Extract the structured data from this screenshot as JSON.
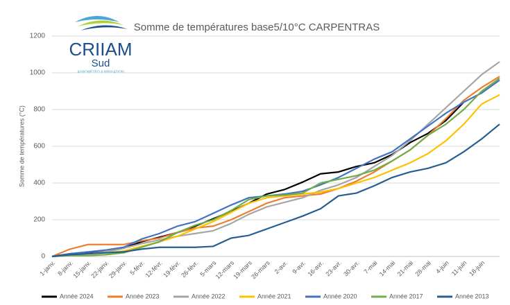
{
  "logo": {
    "name": "CRIIAM",
    "region": "Sud",
    "tagline": "AGROMÉTÉO & IRRIGATION"
  },
  "chart_data": {
    "type": "line",
    "title": "Somme de températures base5/10°C CARPENTRAS",
    "y_label": "Somme de températures (°C)",
    "categories": [
      "1-janv.",
      "8-janv.",
      "15-janv.",
      "22-janv.",
      "29-janv.",
      "5-févr.",
      "12-févr.",
      "19-févr.",
      "26-févr.",
      "5-mars",
      "12-mars",
      "19-mars",
      "26-mars",
      "2-avr.",
      "9-avr.",
      "16-avr.",
      "23-avr.",
      "30-avr.",
      "7-mai",
      "14-mai",
      "21-mai",
      "28-mai",
      "4-juin",
      "11-juin",
      "18-juin",
      null
    ],
    "series": [
      {
        "name": "Année 2024",
        "color": "#000000",
        "values": [
          0,
          15,
          20,
          25,
          45,
          80,
          105,
          130,
          165,
          205,
          245,
          290,
          340,
          365,
          405,
          450,
          460,
          490,
          510,
          555,
          620,
          670,
          740,
          840,
          null,
          null
        ]
      },
      {
        "name": "Année 2023",
        "color": "#ed7d31",
        "values": [
          0,
          40,
          65,
          65,
          65,
          85,
          100,
          130,
          155,
          165,
          200,
          245,
          290,
          320,
          330,
          340,
          370,
          410,
          460,
          520,
          580,
          660,
          750,
          850,
          920,
          980
        ]
      },
      {
        "name": "Année 2022",
        "color": "#a5a5a5",
        "values": [
          0,
          10,
          15,
          25,
          45,
          70,
          90,
          110,
          125,
          140,
          180,
          230,
          270,
          295,
          320,
          360,
          390,
          430,
          490,
          550,
          630,
          720,
          810,
          900,
          990,
          1060
        ]
      },
      {
        "name": "Année 2021",
        "color": "#ffc000",
        "values": [
          0,
          10,
          15,
          20,
          30,
          55,
          80,
          110,
          150,
          190,
          240,
          290,
          320,
          330,
          340,
          350,
          370,
          400,
          430,
          470,
          510,
          560,
          630,
          720,
          830,
          880
        ]
      },
      {
        "name": "Année 2020",
        "color": "#4472c4",
        "values": [
          0,
          15,
          25,
          35,
          50,
          95,
          125,
          165,
          190,
          235,
          280,
          320,
          330,
          340,
          355,
          390,
          430,
          480,
          530,
          570,
          640,
          710,
          780,
          840,
          890,
          960
        ]
      },
      {
        "name": "Année 2017",
        "color": "#70ad47",
        "values": [
          0,
          5,
          5,
          10,
          20,
          50,
          80,
          130,
          170,
          200,
          250,
          310,
          330,
          335,
          345,
          400,
          420,
          440,
          470,
          520,
          580,
          660,
          720,
          800,
          900,
          970
        ]
      },
      {
        "name": "Année 2013",
        "color": "#255e91",
        "values": [
          0,
          10,
          15,
          20,
          25,
          40,
          50,
          50,
          50,
          55,
          100,
          115,
          150,
          185,
          220,
          260,
          330,
          345,
          385,
          430,
          460,
          480,
          510,
          570,
          640,
          720
        ]
      }
    ],
    "ylim": [
      0,
      1200
    ],
    "yticks": [
      0,
      200,
      400,
      600,
      800,
      1000,
      1200
    ],
    "grid": true,
    "legend": "bottom"
  }
}
